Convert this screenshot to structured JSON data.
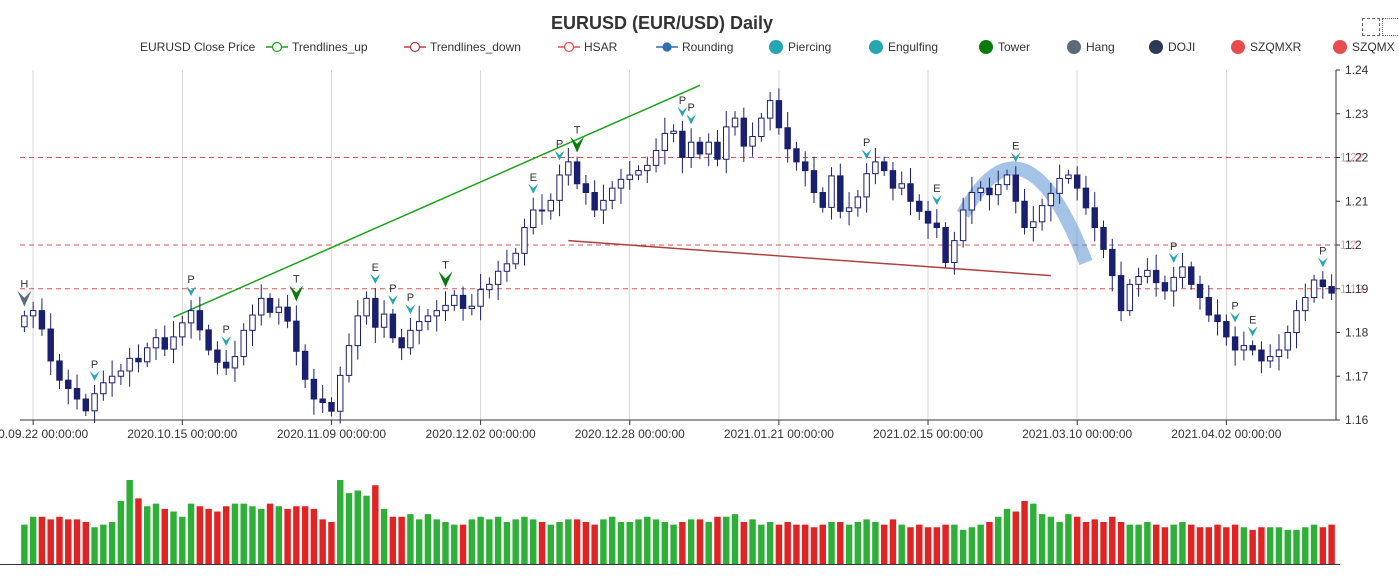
{
  "chart_data": {
    "type": "candlestick",
    "title": "EURUSD (EUR/USD) Daily",
    "legend": [
      {
        "name": "EURUSD Close Price",
        "symbol": "none",
        "color": "#333333"
      },
      {
        "name": "Trendlines_up",
        "symbol": "line-circle",
        "color": "#1aa31a"
      },
      {
        "name": "Trendlines_down",
        "symbol": "line-circle",
        "color": "#b04040"
      },
      {
        "name": "HSAR",
        "symbol": "line-circle",
        "color": "#e05050"
      },
      {
        "name": "Rounding",
        "symbol": "line-dot",
        "color": "#2f6fb5"
      },
      {
        "name": "Piercing",
        "symbol": "dot",
        "color": "#26a6b0"
      },
      {
        "name": "Engulfing",
        "symbol": "dot",
        "color": "#26a6b0"
      },
      {
        "name": "Tower",
        "symbol": "dot",
        "color": "#0a7a0a"
      },
      {
        "name": "Hang",
        "symbol": "dot",
        "color": "#5a6a78"
      },
      {
        "name": "DOJI",
        "symbol": "dot",
        "color": "#2b3a55"
      },
      {
        "name": "SZQMXR",
        "symbol": "dot",
        "color": "#e64c4c"
      },
      {
        "name": "SZQMX",
        "symbol": "dot",
        "color": "#e64c4c"
      }
    ],
    "x_tick_labels": [
      "2020.09.22 00:00:00",
      "2020.10.15 00:00:00",
      "2020.11.09 00:00:00",
      "2020.12.02 00:00:00",
      "2020.12.28 00:00:00",
      "2021.01.21 00:00:00",
      "2021.02.15 00:00:00",
      "2021.03.10 00:00:00",
      "2021.04.02 00:00:00"
    ],
    "x_tick_index": [
      1,
      18,
      35,
      52,
      69,
      86,
      103,
      120,
      137
    ],
    "y_ticks": [
      1.16,
      1.17,
      1.18,
      1.19,
      1.2,
      1.21,
      1.22,
      1.23,
      1.24
    ],
    "y_tick_labels": [
      "1.16",
      "1.17",
      "1.18",
      "1.19",
      "1.2",
      "1.21",
      "1.22",
      "1.23",
      "1.24"
    ],
    "ylim": [
      1.16,
      1.24
    ],
    "hsar_levels": [
      1.19,
      1.2,
      1.22
    ],
    "hsar_labels": [
      "1.19",
      "1.2",
      "1.22"
    ],
    "close": [
      1.1838,
      1.185,
      1.1808,
      1.1735,
      1.1691,
      1.1672,
      1.1648,
      1.1621,
      1.166,
      1.1685,
      1.17,
      1.1712,
      1.1741,
      1.1733,
      1.1765,
      1.1788,
      1.1762,
      1.179,
      1.1822,
      1.185,
      1.1806,
      1.176,
      1.1732,
      1.1719,
      1.1745,
      1.1805,
      1.184,
      1.1878,
      1.1846,
      1.1858,
      1.1826,
      1.1757,
      1.1693,
      1.1648,
      1.164,
      1.162,
      1.1702,
      1.177,
      1.1838,
      1.1878,
      1.1812,
      1.1842,
      1.1788,
      1.1765,
      1.1805,
      1.1825,
      1.1838,
      1.185,
      1.1862,
      1.1885,
      1.1855,
      1.186,
      1.1898,
      1.191,
      1.194,
      1.1957,
      1.1981,
      1.204,
      1.208,
      1.2078,
      1.2102,
      1.216,
      1.219,
      1.214,
      1.212,
      1.208,
      1.2102,
      1.213,
      1.215,
      1.216,
      1.217,
      1.2182,
      1.2216,
      1.2255,
      1.226,
      1.22,
      1.2235,
      1.2208,
      1.2235,
      1.2196,
      1.227,
      1.229,
      1.2226,
      1.2248,
      1.229,
      1.233,
      1.2268,
      1.222,
      1.219,
      1.217,
      1.212,
      1.2086,
      1.2158,
      1.2077,
      1.2085,
      1.211,
      1.2163,
      1.219,
      1.217,
      1.213,
      1.214,
      1.21,
      1.2077,
      1.205,
      1.204,
      1.196,
      1.201,
      1.208,
      1.212,
      1.213,
      1.2115,
      1.2138,
      1.216,
      1.21,
      1.204,
      1.2053,
      1.209,
      1.2118,
      1.2152,
      1.216,
      1.213,
      1.2085,
      1.204,
      1.199,
      1.193,
      1.185,
      1.191,
      1.1928,
      1.1942,
      1.1914,
      1.1895,
      1.1926,
      1.195,
      1.191,
      1.188,
      1.184,
      1.1825,
      1.179,
      1.176,
      1.177,
      1.176,
      1.1735,
      1.1745,
      1.176,
      1.18,
      1.185,
      1.188,
      1.192,
      1.1905,
      1.189
    ],
    "markers": [
      {
        "index": 0,
        "label": "H",
        "type": "Hang"
      },
      {
        "index": 8,
        "label": "P",
        "type": "Piercing"
      },
      {
        "index": 19,
        "label": "P",
        "type": "Piercing"
      },
      {
        "index": 23,
        "label": "P",
        "type": "Piercing"
      },
      {
        "index": 31,
        "label": "T",
        "type": "Tower"
      },
      {
        "index": 40,
        "label": "E",
        "type": "Engulfing"
      },
      {
        "index": 42,
        "label": "P",
        "type": "Piercing"
      },
      {
        "index": 44,
        "label": "P",
        "type": "Piercing"
      },
      {
        "index": 48,
        "label": "T",
        "type": "Tower"
      },
      {
        "index": 58,
        "label": "E",
        "type": "Engulfing"
      },
      {
        "index": 61,
        "label": "P",
        "type": "Piercing"
      },
      {
        "index": 63,
        "label": "T",
        "type": "Tower"
      },
      {
        "index": 75,
        "label": "P",
        "type": "Piercing"
      },
      {
        "index": 76,
        "label": "P",
        "type": "Piercing"
      },
      {
        "index": 96,
        "label": "P",
        "type": "Piercing"
      },
      {
        "index": 104,
        "label": "E",
        "type": "Engulfing"
      },
      {
        "index": 113,
        "label": "E",
        "type": "Engulfing"
      },
      {
        "index": 131,
        "label": "P",
        "type": "Piercing"
      },
      {
        "index": 138,
        "label": "P",
        "type": "Piercing"
      },
      {
        "index": 140,
        "label": "E",
        "type": "Engulfing"
      },
      {
        "index": 148,
        "label": "P",
        "type": "Piercing"
      },
      {
        "index": 152,
        "label": "E",
        "type": "Engulfing"
      },
      {
        "index": 155,
        "label": "P",
        "type": "Piercing"
      },
      {
        "index": 156,
        "label": "P",
        "type": "Piercing"
      }
    ],
    "trendline_up": {
      "from": [
        17,
        1.1835
      ],
      "to": [
        77,
        1.2365
      ]
    },
    "trendline_down": {
      "from": [
        62,
        1.201
      ],
      "to": [
        117,
        1.193
      ]
    },
    "rounding": {
      "from_index": 107,
      "to_index": 121,
      "start": 1.207,
      "peak": 1.217,
      "end": 1.196
    },
    "volume": [
      15,
      18,
      18,
      17,
      18,
      17,
      17,
      16,
      14,
      15,
      16,
      24,
      32,
      25,
      22,
      23,
      21,
      20,
      18,
      23,
      22,
      21,
      20,
      22,
      23,
      23,
      22,
      21,
      23,
      22,
      21,
      22,
      22,
      21,
      17,
      16,
      32,
      27,
      28,
      26,
      30,
      21,
      18,
      18,
      19,
      17,
      19,
      17,
      16,
      15,
      15,
      17,
      18,
      17,
      18,
      16,
      17,
      18,
      17,
      16,
      15,
      16,
      17,
      17,
      16,
      15,
      17,
      18,
      16,
      16,
      17,
      18,
      17,
      16,
      15,
      16,
      17,
      17,
      16,
      18,
      18,
      19,
      16,
      17,
      15,
      16,
      15,
      16,
      15,
      15,
      14,
      15,
      16,
      16,
      15,
      16,
      17,
      16,
      15,
      17,
      15,
      14,
      15,
      14,
      14,
      15,
      15,
      13,
      14,
      15,
      16,
      18,
      21,
      20,
      24,
      23,
      19,
      18,
      16,
      19,
      18,
      16,
      17,
      16,
      18,
      16,
      15,
      15,
      16,
      15,
      14,
      15,
      16,
      15,
      14,
      14,
      15,
      14,
      15,
      14,
      13,
      14,
      14,
      14,
      13,
      13,
      14,
      15,
      14,
      15
    ],
    "volume_colors": {
      "up": "#2eb038",
      "down": "#e02424"
    },
    "candle_colors": {
      "up_fill": "#ffffff",
      "up_border": "#1a1f6e",
      "down_fill": "#1a1f6e"
    },
    "grid": true
  },
  "toolbox": {
    "zoom_icon": "zoom-select-icon",
    "restore_icon": "zoom-restore-icon"
  }
}
